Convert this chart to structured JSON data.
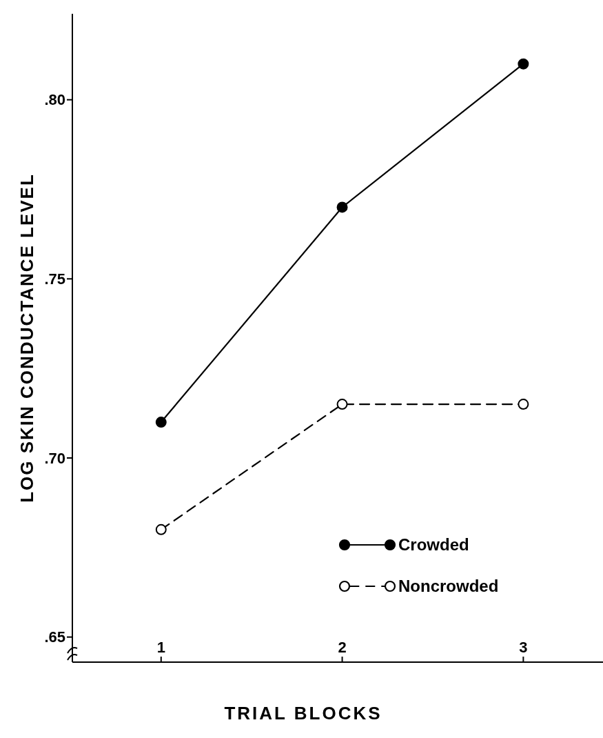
{
  "chart_data": {
    "type": "line",
    "xlabel": "TRIAL BLOCKS",
    "ylabel": "LOG SKIN CONDUCTANCE LEVEL",
    "x": [
      1,
      2,
      3
    ],
    "xlim": [
      0.51,
      3.44
    ],
    "xticks": [
      1,
      2,
      3
    ],
    "ylim": [
      0.643,
      0.824
    ],
    "yticks": [
      {
        "value": 0.65,
        "label": ".65"
      },
      {
        "value": 0.7,
        "label": ".70"
      },
      {
        "value": 0.75,
        "label": ".75"
      },
      {
        "value": 0.8,
        "label": ".80"
      }
    ],
    "series": [
      {
        "name": "Crowded",
        "color": "#000000",
        "values": [
          0.71,
          0.77,
          0.81
        ],
        "line_style": "solid"
      },
      {
        "name": "Noncrowded",
        "color": "#000000",
        "values": [
          0.68,
          0.715,
          0.715
        ],
        "line_style": "dashed"
      }
    ],
    "marker": "circle",
    "grid": false,
    "legend": "bottom right"
  }
}
